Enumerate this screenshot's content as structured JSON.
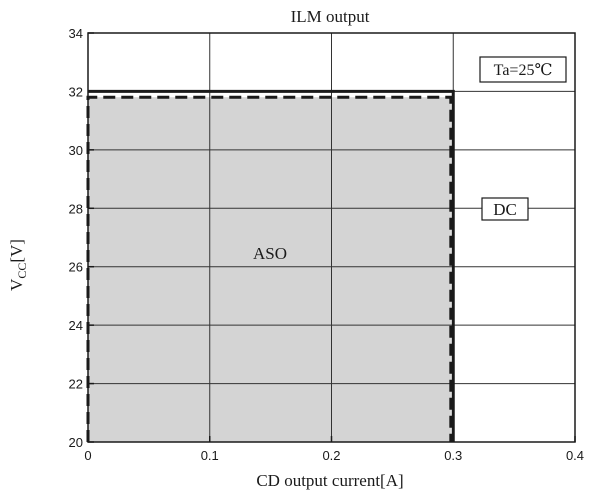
{
  "chart_data": {
    "type": "area",
    "title": "ILM output",
    "xlabel": "CD output current[A]",
    "ylabel_main": "V",
    "ylabel_sub": "CC",
    "ylabel_unit": "[V]",
    "xlim": [
      0,
      0.4
    ],
    "ylim": [
      20,
      34
    ],
    "x_ticks": [
      0,
      0.1,
      0.2,
      0.3,
      0.4
    ],
    "x_tick_labels": [
      "0",
      "0.1",
      "0.2",
      "0.3",
      "0.4"
    ],
    "y_ticks": [
      20,
      22,
      24,
      26,
      28,
      30,
      32,
      34
    ],
    "y_tick_labels": [
      "20",
      "22",
      "24",
      "26",
      "28",
      "30",
      "32",
      "34"
    ],
    "x_gridlines": [
      0.1,
      0.2,
      0.3
    ],
    "grid": true,
    "series": [
      {
        "name": "DC",
        "style": "solid",
        "points": [
          [
            0,
            32
          ],
          [
            0.3,
            32
          ],
          [
            0.3,
            20
          ]
        ]
      },
      {
        "name": "ASO",
        "style": "dashed",
        "filled": true,
        "points": [
          [
            0,
            20
          ],
          [
            0,
            31.8
          ],
          [
            0.298,
            31.8
          ],
          [
            0.298,
            20
          ]
        ]
      }
    ],
    "annotations": {
      "aso_label": "ASO",
      "dc_label": "DC",
      "ta_label": "Ta=25℃"
    },
    "colors": {
      "fill": "#d4d4d4",
      "line": "#1a1a1a",
      "grid": "#333333"
    }
  }
}
